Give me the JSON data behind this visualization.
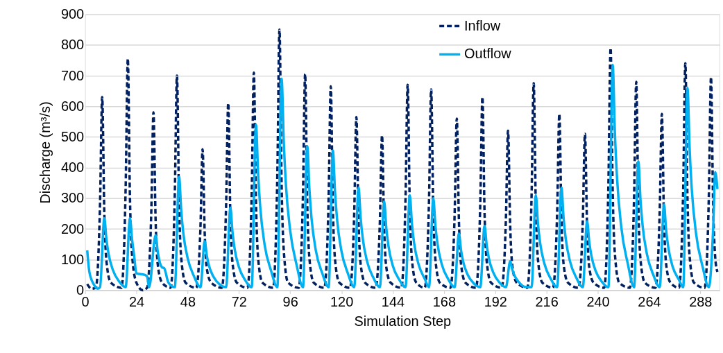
{
  "chart_data": {
    "type": "line",
    "xlabel": "Simulation Step",
    "ylabel": "Discharge (m³/s)",
    "xlim": [
      0,
      297
    ],
    "xticks": [
      0,
      24,
      48,
      72,
      96,
      120,
      144,
      168,
      192,
      216,
      240,
      264,
      288
    ],
    "ylim": [
      0,
      900
    ],
    "yticks": [
      0,
      100,
      200,
      300,
      400,
      500,
      600,
      700,
      800,
      900
    ],
    "grid": "y",
    "legend": "top right",
    "marker": "none",
    "series": [
      {
        "name": "Inflow",
        "color": "#002060",
        "line_style": "dashed",
        "x": [
          1,
          3,
          5,
          7,
          8,
          9,
          10,
          12,
          17,
          19,
          20,
          21,
          22,
          24,
          27,
          29,
          31,
          32,
          33,
          34,
          36,
          40,
          42,
          43,
          44,
          45,
          47,
          52,
          54,
          55,
          56,
          57,
          59,
          64,
          66,
          67,
          68,
          69,
          71,
          76,
          78,
          79,
          80,
          81,
          83,
          88,
          90,
          91,
          92,
          93,
          95,
          100,
          102,
          103,
          104,
          105,
          107,
          112,
          114,
          115,
          116,
          117,
          119,
          124,
          126,
          127,
          128,
          129,
          131,
          136,
          138,
          139,
          140,
          141,
          143,
          148,
          150,
          151,
          152,
          153,
          155,
          159,
          161,
          162,
          163,
          164,
          166,
          171,
          173,
          174,
          175,
          176,
          178,
          183,
          185,
          186,
          187,
          188,
          190,
          195,
          197,
          198,
          199,
          200,
          202,
          207,
          209,
          210,
          211,
          212,
          214,
          219,
          221,
          222,
          223,
          224,
          226,
          231,
          233,
          234,
          235,
          236,
          238,
          243,
          245,
          246,
          247,
          248,
          250,
          255,
          257,
          258,
          259,
          260,
          262,
          267,
          269,
          270,
          271,
          272,
          274,
          278,
          280,
          281,
          282,
          283,
          285,
          290,
          292,
          293,
          294,
          295,
          296
        ],
        "values": [
          20,
          5,
          8,
          285,
          630,
          250,
          95,
          25,
          8,
          340,
          755,
          300,
          115,
          25,
          0,
          8,
          260,
          580,
          230,
          85,
          25,
          8,
          315,
          700,
          280,
          105,
          25,
          8,
          205,
          460,
          185,
          70,
          25,
          8,
          275,
          610,
          245,
          90,
          25,
          8,
          320,
          710,
          285,
          105,
          25,
          8,
          380,
          850,
          340,
          130,
          25,
          8,
          315,
          705,
          280,
          105,
          25,
          8,
          300,
          665,
          265,
          100,
          25,
          8,
          255,
          565,
          225,
          85,
          25,
          8,
          225,
          505,
          200,
          75,
          25,
          8,
          300,
          670,
          270,
          100,
          25,
          8,
          295,
          655,
          260,
          100,
          25,
          8,
          250,
          560,
          225,
          85,
          25,
          8,
          285,
          630,
          250,
          95,
          25,
          8,
          235,
          520,
          210,
          80,
          25,
          8,
          305,
          675,
          270,
          100,
          25,
          8,
          260,
          575,
          230,
          85,
          25,
          8,
          230,
          510,
          205,
          75,
          25,
          8,
          355,
          790,
          315,
          120,
          25,
          8,
          305,
          680,
          270,
          100,
          25,
          8,
          260,
          575,
          230,
          85,
          25,
          8,
          335,
          740,
          295,
          110,
          25,
          8,
          310,
          695,
          280,
          105,
          60
        ]
      },
      {
        "name": "Outflow",
        "color": "#00b0f0",
        "line_style": "solid",
        "x": [
          1,
          2,
          4,
          6,
          7,
          9,
          10,
          11,
          13,
          16,
          19,
          21,
          22,
          23,
          24,
          28,
          29,
          30,
          33,
          34,
          35,
          36,
          37,
          39,
          42,
          44,
          45,
          46,
          48,
          51,
          54,
          56,
          57,
          58,
          60,
          63,
          66,
          68,
          69,
          70,
          72,
          75,
          78,
          80,
          81,
          82,
          84,
          87,
          90,
          92,
          93,
          94,
          96,
          99,
          102,
          104,
          105,
          106,
          108,
          111,
          114,
          116,
          117,
          118,
          120,
          123,
          126,
          128,
          129,
          130,
          132,
          135,
          138,
          140,
          141,
          142,
          144,
          147,
          150,
          152,
          153,
          154,
          156,
          159,
          161,
          163,
          164,
          165,
          167,
          170,
          173,
          175,
          176,
          177,
          179,
          182,
          185,
          187,
          188,
          189,
          191,
          194,
          197,
          199,
          200,
          201,
          203,
          206,
          209,
          211,
          212,
          213,
          215,
          218,
          221,
          223,
          224,
          225,
          227,
          230,
          233,
          235,
          236,
          237,
          239,
          242,
          245,
          247,
          248,
          249,
          251,
          254,
          257,
          259,
          260,
          261,
          263,
          266,
          269,
          271,
          272,
          273,
          275,
          278,
          280,
          282,
          283,
          284,
          286,
          289,
          292,
          294,
          295,
          296
        ],
        "values": [
          130,
          60,
          20,
          5,
          10,
          235,
          165,
          118,
          66,
          28,
          10,
          235,
          165,
          110,
          55,
          50,
          45,
          10,
          180,
          126,
          90,
          75,
          72,
          25,
          10,
          370,
          260,
          185,
          105,
          45,
          10,
          160,
          112,
          80,
          45,
          19,
          10,
          270,
          190,
          135,
          76,
          32,
          10,
          540,
          380,
          270,
          150,
          65,
          10,
          690,
          485,
          345,
          195,
          83,
          10,
          470,
          330,
          235,
          130,
          56,
          10,
          455,
          320,
          228,
          128,
          55,
          10,
          335,
          235,
          168,
          94,
          40,
          10,
          290,
          203,
          145,
          81,
          35,
          10,
          310,
          217,
          155,
          87,
          37,
          10,
          300,
          210,
          150,
          84,
          36,
          10,
          185,
          130,
          93,
          52,
          22,
          10,
          210,
          147,
          105,
          59,
          25,
          10,
          95,
          67,
          48,
          27,
          11,
          10,
          310,
          217,
          155,
          87,
          37,
          10,
          335,
          235,
          168,
          94,
          40,
          10,
          225,
          158,
          113,
          63,
          27,
          10,
          735,
          515,
          368,
          206,
          88,
          10,
          420,
          294,
          210,
          118,
          50,
          10,
          280,
          196,
          140,
          78,
          34,
          10,
          660,
          462,
          330,
          185,
          79,
          10,
          200,
          385,
          330
        ]
      }
    ]
  }
}
